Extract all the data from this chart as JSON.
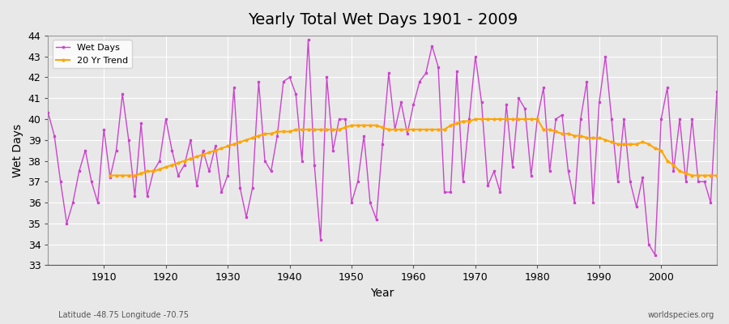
{
  "title": "Yearly Total Wet Days 1901 - 2009",
  "xlabel": "Year",
  "ylabel": "Wet Days",
  "subtitle": "Latitude -48.75 Longitude -70.75",
  "watermark": "worldspecies.org",
  "ylim": [
    33,
    44
  ],
  "xlim": [
    1901,
    2009
  ],
  "yticks": [
    33,
    34,
    35,
    36,
    37,
    38,
    39,
    40,
    41,
    42,
    43,
    44
  ],
  "xticks": [
    1910,
    1920,
    1930,
    1940,
    1950,
    1960,
    1970,
    1980,
    1990,
    2000
  ],
  "wet_days_color": "#CC44CC",
  "trend_color": "#FFA500",
  "background_color": "#E8E8E8",
  "legend_wet": "Wet Days",
  "legend_trend": "20 Yr Trend",
  "years": [
    1901,
    1902,
    1903,
    1904,
    1905,
    1906,
    1907,
    1908,
    1909,
    1910,
    1911,
    1912,
    1913,
    1914,
    1915,
    1916,
    1917,
    1918,
    1919,
    1920,
    1921,
    1922,
    1923,
    1924,
    1925,
    1926,
    1927,
    1928,
    1929,
    1930,
    1931,
    1932,
    1933,
    1934,
    1935,
    1936,
    1937,
    1938,
    1939,
    1940,
    1941,
    1942,
    1943,
    1944,
    1945,
    1946,
    1947,
    1948,
    1949,
    1950,
    1951,
    1952,
    1953,
    1954,
    1955,
    1956,
    1957,
    1958,
    1959,
    1960,
    1961,
    1962,
    1963,
    1964,
    1965,
    1966,
    1967,
    1968,
    1969,
    1970,
    1971,
    1972,
    1973,
    1974,
    1975,
    1976,
    1977,
    1978,
    1979,
    1980,
    1981,
    1982,
    1983,
    1984,
    1985,
    1986,
    1987,
    1988,
    1989,
    1990,
    1991,
    1992,
    1993,
    1994,
    1995,
    1996,
    1997,
    1998,
    1999,
    2000,
    2001,
    2002,
    2003,
    2004,
    2005,
    2006,
    2007,
    2008,
    2009
  ],
  "wet_days": [
    40.3,
    39.2,
    37.0,
    35.0,
    36.0,
    37.5,
    38.5,
    37.0,
    36.0,
    39.5,
    37.2,
    38.5,
    41.2,
    39.0,
    36.3,
    39.8,
    36.3,
    37.5,
    38.0,
    40.0,
    38.5,
    37.3,
    37.8,
    39.0,
    36.8,
    38.5,
    37.5,
    38.7,
    36.5,
    37.3,
    41.5,
    36.7,
    35.3,
    36.7,
    41.8,
    38.0,
    37.5,
    39.2,
    41.8,
    42.0,
    41.2,
    38.0,
    43.8,
    37.8,
    34.2,
    42.0,
    38.5,
    40.0,
    40.0,
    36.0,
    37.0,
    39.2,
    36.0,
    35.2,
    38.8,
    42.2,
    39.5,
    40.8,
    39.3,
    40.7,
    41.8,
    42.2,
    43.5,
    42.5,
    36.5,
    36.5,
    42.3,
    37.0,
    40.0,
    43.0,
    40.8,
    36.8,
    37.5,
    36.5,
    40.7,
    37.7,
    41.0,
    40.5,
    37.3,
    40.0,
    41.5,
    37.5,
    40.0,
    40.2,
    37.5,
    36.0,
    40.0,
    41.8,
    36.0,
    40.8,
    43.0,
    40.0,
    37.0,
    40.0,
    37.0,
    35.8,
    37.2,
    34.0,
    33.5,
    40.0,
    41.5,
    37.5,
    40.0,
    37.0,
    40.0,
    37.0,
    37.0,
    36.0,
    41.3
  ],
  "trend_years": [
    1911,
    1912,
    1913,
    1914,
    1915,
    1916,
    1917,
    1918,
    1919,
    1920,
    1921,
    1922,
    1923,
    1924,
    1925,
    1926,
    1927,
    1928,
    1929,
    1930,
    1931,
    1932,
    1933,
    1934,
    1935,
    1936,
    1937,
    1938,
    1939,
    1940,
    1941,
    1942,
    1943,
    1944,
    1945,
    1946,
    1947,
    1948,
    1949,
    1950,
    1951,
    1952,
    1953,
    1954,
    1955,
    1956,
    1957,
    1958,
    1959,
    1960,
    1961,
    1962,
    1963,
    1964,
    1965,
    1966,
    1967,
    1968,
    1969,
    1970,
    1971,
    1972,
    1973,
    1974,
    1975,
    1976,
    1977,
    1978,
    1979,
    1980,
    1981,
    1982,
    1983,
    1984,
    1985,
    1986,
    1987,
    1988,
    1989,
    1990,
    1991,
    1992,
    1993,
    1994,
    1995,
    1996,
    1997,
    1998,
    1999,
    2000,
    2001,
    2002,
    2003,
    2004,
    2005,
    2006,
    2007,
    2008,
    2009
  ],
  "trend_values": [
    37.3,
    37.3,
    37.3,
    37.3,
    37.3,
    37.4,
    37.5,
    37.5,
    37.6,
    37.7,
    37.8,
    37.9,
    38.0,
    38.1,
    38.2,
    38.3,
    38.4,
    38.5,
    38.6,
    38.7,
    38.8,
    38.9,
    39.0,
    39.1,
    39.2,
    39.3,
    39.3,
    39.4,
    39.4,
    39.4,
    39.5,
    39.5,
    39.5,
    39.5,
    39.5,
    39.5,
    39.5,
    39.5,
    39.6,
    39.7,
    39.7,
    39.7,
    39.7,
    39.7,
    39.6,
    39.5,
    39.5,
    39.5,
    39.5,
    39.5,
    39.5,
    39.5,
    39.5,
    39.5,
    39.5,
    39.7,
    39.8,
    39.9,
    39.9,
    40.0,
    40.0,
    40.0,
    40.0,
    40.0,
    40.0,
    40.0,
    40.0,
    40.0,
    40.0,
    40.0,
    39.5,
    39.5,
    39.4,
    39.3,
    39.3,
    39.2,
    39.2,
    39.1,
    39.1,
    39.1,
    39.0,
    38.9,
    38.8,
    38.8,
    38.8,
    38.8,
    38.9,
    38.8,
    38.6,
    38.5,
    38.0,
    37.8,
    37.5,
    37.4,
    37.3,
    37.3,
    37.3,
    37.3,
    37.3
  ]
}
